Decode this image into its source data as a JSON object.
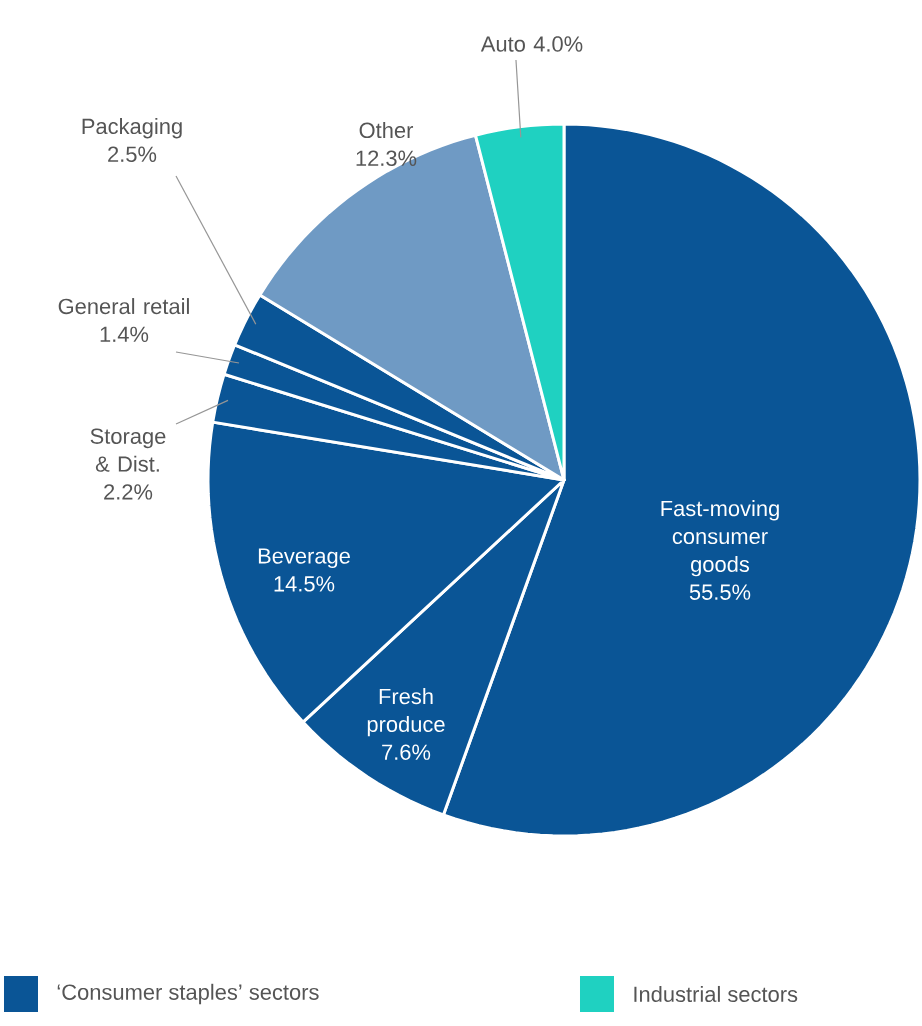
{
  "chart_data": {
    "type": "pie",
    "categories": [
      "Fast-moving consumer goods",
      "Fresh produce",
      "Beverage",
      "Storage & Dist.",
      "General retail",
      "Packaging",
      "Other",
      "Auto"
    ],
    "values": [
      55.5,
      7.6,
      14.5,
      2.2,
      1.4,
      2.5,
      12.3,
      4.0
    ],
    "value_labels": [
      "55.5%",
      "7.6%",
      "14.5%",
      "2.2%",
      "1.4%",
      "2.5%",
      "12.3%",
      "4.0%"
    ],
    "colors": [
      "#0a5596",
      "#0a5596",
      "#0a5596",
      "#0a5596",
      "#0a5596",
      "#0a5596",
      "#6f9ac4",
      "#1fd1c1"
    ],
    "annotations": [
      "‘Consumer staples’ sectors",
      "Industrial sectors"
    ]
  }
}
